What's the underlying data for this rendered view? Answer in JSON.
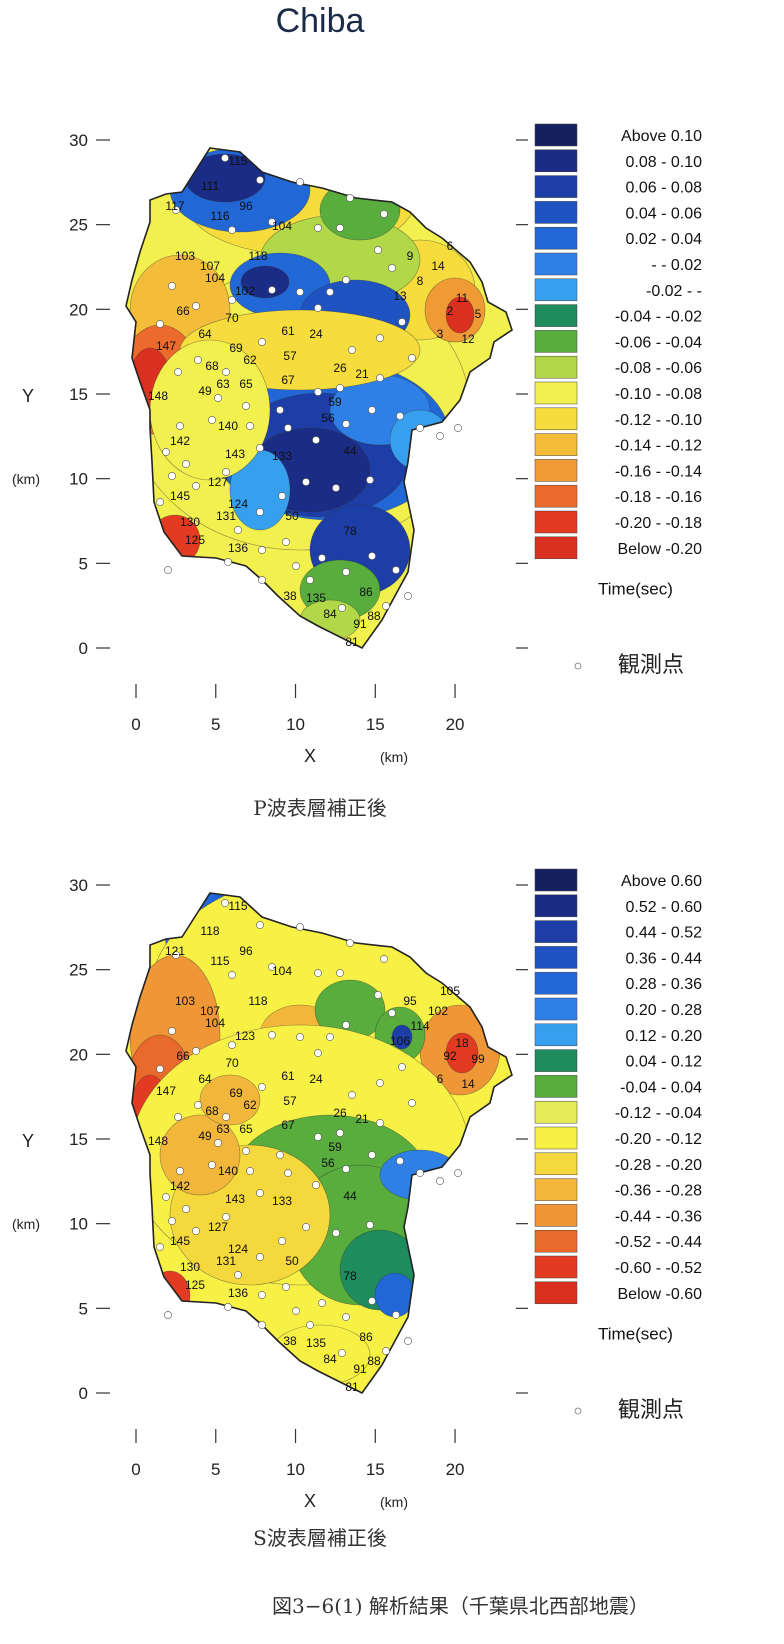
{
  "title": "Chiba",
  "figure_caption": "図3−6(1)  解析結果（千葉県北西部地震）",
  "legend_observation": "観測点",
  "chart_data": [
    {
      "type": "heatmap",
      "caption": "P波表層補正後",
      "xlabel": "X",
      "xunit": "(km)",
      "ylabel": "Y",
      "yunit": "(km)",
      "xticks": [
        0,
        5,
        10,
        15,
        20
      ],
      "yticks": [
        0,
        5,
        10,
        15,
        20,
        25,
        30
      ],
      "xlim": [
        0,
        21
      ],
      "ylim": [
        0,
        30
      ],
      "legend_title": "Time(sec)",
      "legend": [
        {
          "label": "Above  0.10",
          "color": "#15205e"
        },
        {
          "label": "0.08 -  0.10",
          "color": "#1a2c86"
        },
        {
          "label": "0.06 -  0.08",
          "color": "#1d3ea6"
        },
        {
          "label": "0.04 -  0.06",
          "color": "#1f53c2"
        },
        {
          "label": "0.02 -  0.04",
          "color": "#2168d6"
        },
        {
          "label": "-  -  0.02",
          "color": "#2f80e6"
        },
        {
          "label": "-0.02 -      -",
          "color": "#37a0ee"
        },
        {
          "label": "-0.04 - -0.02",
          "color": "#1e8c5c"
        },
        {
          "label": "-0.06 - -0.04",
          "color": "#58ad3d"
        },
        {
          "label": "-0.08 - -0.06",
          "color": "#b2d84a"
        },
        {
          "label": "-0.10 - -0.08",
          "color": "#f2f04e"
        },
        {
          "label": "-0.12 - -0.10",
          "color": "#f6dc3c"
        },
        {
          "label": "-0.14 - -0.12",
          "color": "#f3bd3a"
        },
        {
          "label": "-0.16 - -0.14",
          "color": "#f09a36"
        },
        {
          "label": "-0.18 - -0.16",
          "color": "#ec6a2c"
        },
        {
          "label": "-0.20 - -0.18",
          "color": "#e33a22"
        },
        {
          "label": "Below  -0.20",
          "color": "#d9301f"
        }
      ],
      "stations": [
        "115",
        "111",
        "117",
        "96",
        "104",
        "116",
        "103",
        "107",
        "104",
        "118",
        "102",
        "9",
        "14",
        "8",
        "6",
        "13",
        "11",
        "5",
        "2",
        "12",
        "3",
        "66",
        "70",
        "61",
        "64",
        "69",
        "62",
        "57",
        "24",
        "147",
        "68",
        "63",
        "65",
        "67",
        "26",
        "21",
        "148",
        "49",
        "59",
        "56",
        "140",
        "142",
        "143",
        "127",
        "124",
        "125",
        "131",
        "133",
        "50",
        "145",
        "130",
        "136",
        "78",
        "44",
        "38",
        "135",
        "86",
        "84",
        "91",
        "88",
        "81"
      ]
    },
    {
      "type": "heatmap",
      "caption": "S波表層補正後",
      "xlabel": "X",
      "xunit": "(km)",
      "ylabel": "Y",
      "yunit": "(km)",
      "xticks": [
        0,
        5,
        10,
        15,
        20
      ],
      "yticks": [
        0,
        5,
        10,
        15,
        20,
        25,
        30
      ],
      "xlim": [
        0,
        21
      ],
      "ylim": [
        0,
        30
      ],
      "legend_title": "Time(sec)",
      "legend": [
        {
          "label": "Above  0.60",
          "color": "#15205e"
        },
        {
          "label": "0.52 -  0.60",
          "color": "#1a2c86"
        },
        {
          "label": "0.44 -  0.52",
          "color": "#1d3ea6"
        },
        {
          "label": "0.36 -  0.44",
          "color": "#1f53c2"
        },
        {
          "label": "0.28 -  0.36",
          "color": "#2168d6"
        },
        {
          "label": "0.20 -  0.28",
          "color": "#2f80e6"
        },
        {
          "label": "0.12 -  0.20",
          "color": "#37a0ee"
        },
        {
          "label": "0.04 -  0.12",
          "color": "#1e8c5c"
        },
        {
          "label": "-0.04 -  0.04",
          "color": "#58ad3d"
        },
        {
          "label": "-0.12 - -0.04",
          "color": "#e5ec59"
        },
        {
          "label": "-0.20 - -0.12",
          "color": "#f8f145"
        },
        {
          "label": "-0.28 - -0.20",
          "color": "#f5d83b"
        },
        {
          "label": "-0.36 - -0.28",
          "color": "#f2b73a"
        },
        {
          "label": "-0.44 - -0.36",
          "color": "#ef9737"
        },
        {
          "label": "-0.52 - -0.44",
          "color": "#ea6a2c"
        },
        {
          "label": "-0.60 - -0.52",
          "color": "#e33a22"
        },
        {
          "label": "Below  -0.60",
          "color": "#d9301f"
        }
      ],
      "stations": [
        "115",
        "118",
        "121",
        "96",
        "104",
        "115",
        "103",
        "107",
        "104",
        "118",
        "123",
        "95",
        "102",
        "114",
        "105",
        "106",
        "18",
        "99",
        "92",
        "14",
        "6",
        "66",
        "70",
        "61",
        "64",
        "69",
        "62",
        "57",
        "24",
        "147",
        "68",
        "63",
        "65",
        "67",
        "26",
        "21",
        "148",
        "49",
        "59",
        "56",
        "140",
        "142",
        "143",
        "127",
        "124",
        "125",
        "131",
        "133",
        "50",
        "145",
        "130",
        "136",
        "78",
        "44",
        "38",
        "135",
        "86",
        "84",
        "91",
        "88",
        "81"
      ]
    }
  ]
}
